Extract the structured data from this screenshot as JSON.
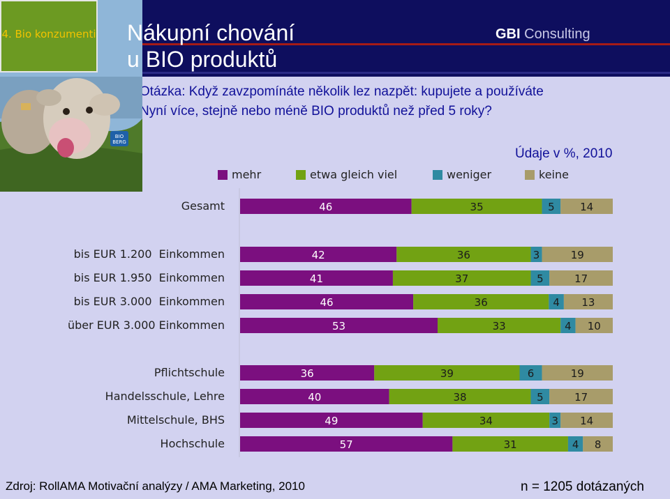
{
  "section_tag": "4. Bio konzumenti",
  "title_line1": "Nákupní chování",
  "title_line2": "u BIO produktů",
  "brand": {
    "strong": "GBI",
    "rest": " Consulting"
  },
  "question_line1": "Otázka: Když zavzpomínáte několik lez nazpět: kupujete a používáte",
  "question_line2": "Nyní více, stejně nebo méně BIO produktů než před 5 roky?",
  "unit_label": "Údaje v %, 2010",
  "colors": {
    "mehr": "#7b0f7f",
    "etwa": "#72a213",
    "weniger": "#2f8aa2",
    "keine": "#a89c6a"
  },
  "chart_data": {
    "type": "bar",
    "orientation": "horizontal",
    "stacked": true,
    "legend_position": "top",
    "series": [
      {
        "name": "mehr"
      },
      {
        "name": "etwa gleich viel"
      },
      {
        "name": "weniger"
      },
      {
        "name": "keine"
      }
    ],
    "groups": [
      {
        "rows": [
          {
            "category": "Gesamt",
            "values": [
              46,
              35,
              5,
              14
            ]
          }
        ]
      },
      {
        "rows": [
          {
            "category": "bis EUR 1.200  Einkommen",
            "values": [
              42,
              36,
              3,
              19
            ]
          },
          {
            "category": "bis EUR 1.950  Einkommen",
            "values": [
              41,
              37,
              5,
              17
            ]
          },
          {
            "category": "bis EUR 3.000  Einkommen",
            "values": [
              46,
              36,
              4,
              13
            ]
          },
          {
            "category": "über EUR 3.000 Einkommen",
            "values": [
              53,
              33,
              4,
              10
            ]
          }
        ]
      },
      {
        "rows": [
          {
            "category": "Pflichtschule",
            "values": [
              36,
              39,
              6,
              19
            ]
          },
          {
            "category": "Handelsschule, Lehre",
            "values": [
              40,
              38,
              5,
              17
            ]
          },
          {
            "category": "Mittelschule, BHS",
            "values": [
              49,
              34,
              3,
              14
            ]
          },
          {
            "category": "Hochschule",
            "values": [
              57,
              31,
              4,
              8
            ]
          }
        ]
      }
    ]
  },
  "footer_source": "Zdroj: RollAMA Motivační analýzy / AMA Marketing, 2010",
  "footer_n": "n = 1205 dotázaných",
  "photo_badge_line1": "BIO",
  "photo_badge_line2": "BERG"
}
